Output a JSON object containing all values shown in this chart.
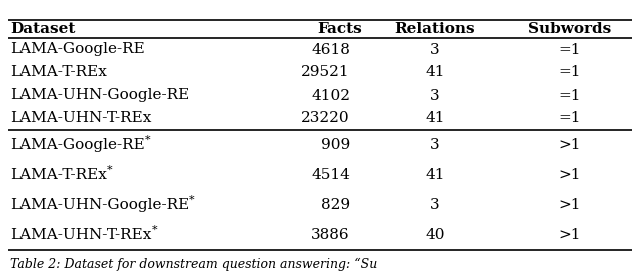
{
  "headers": [
    "Dataset",
    "Facts",
    "Relations",
    "Subwords"
  ],
  "rows": [
    [
      "LAMA-Google-RE",
      "4618",
      "3",
      "=1"
    ],
    [
      "LAMA-T-REx",
      "29521",
      "41",
      "=1"
    ],
    [
      "LAMA-UHN-Google-RE",
      "4102",
      "3",
      "=1"
    ],
    [
      "LAMA-UHN-T-REx",
      "23220",
      "41",
      "=1"
    ],
    [
      "LAMA-Google-RE*",
      "909",
      "3",
      ">1"
    ],
    [
      "LAMA-T-REx*",
      "4514",
      "41",
      ">1"
    ],
    [
      "LAMA-UHN-Google-RE*",
      "829",
      "3",
      ">1"
    ],
    [
      "LAMA-UHN-T-REx*",
      "3886",
      "40",
      ">1"
    ]
  ],
  "font_size": 11.0,
  "caption_font_size": 9.0,
  "bg_color": "#ffffff",
  "caption": "Table 2: Dataset for downstream question answering: “Su"
}
